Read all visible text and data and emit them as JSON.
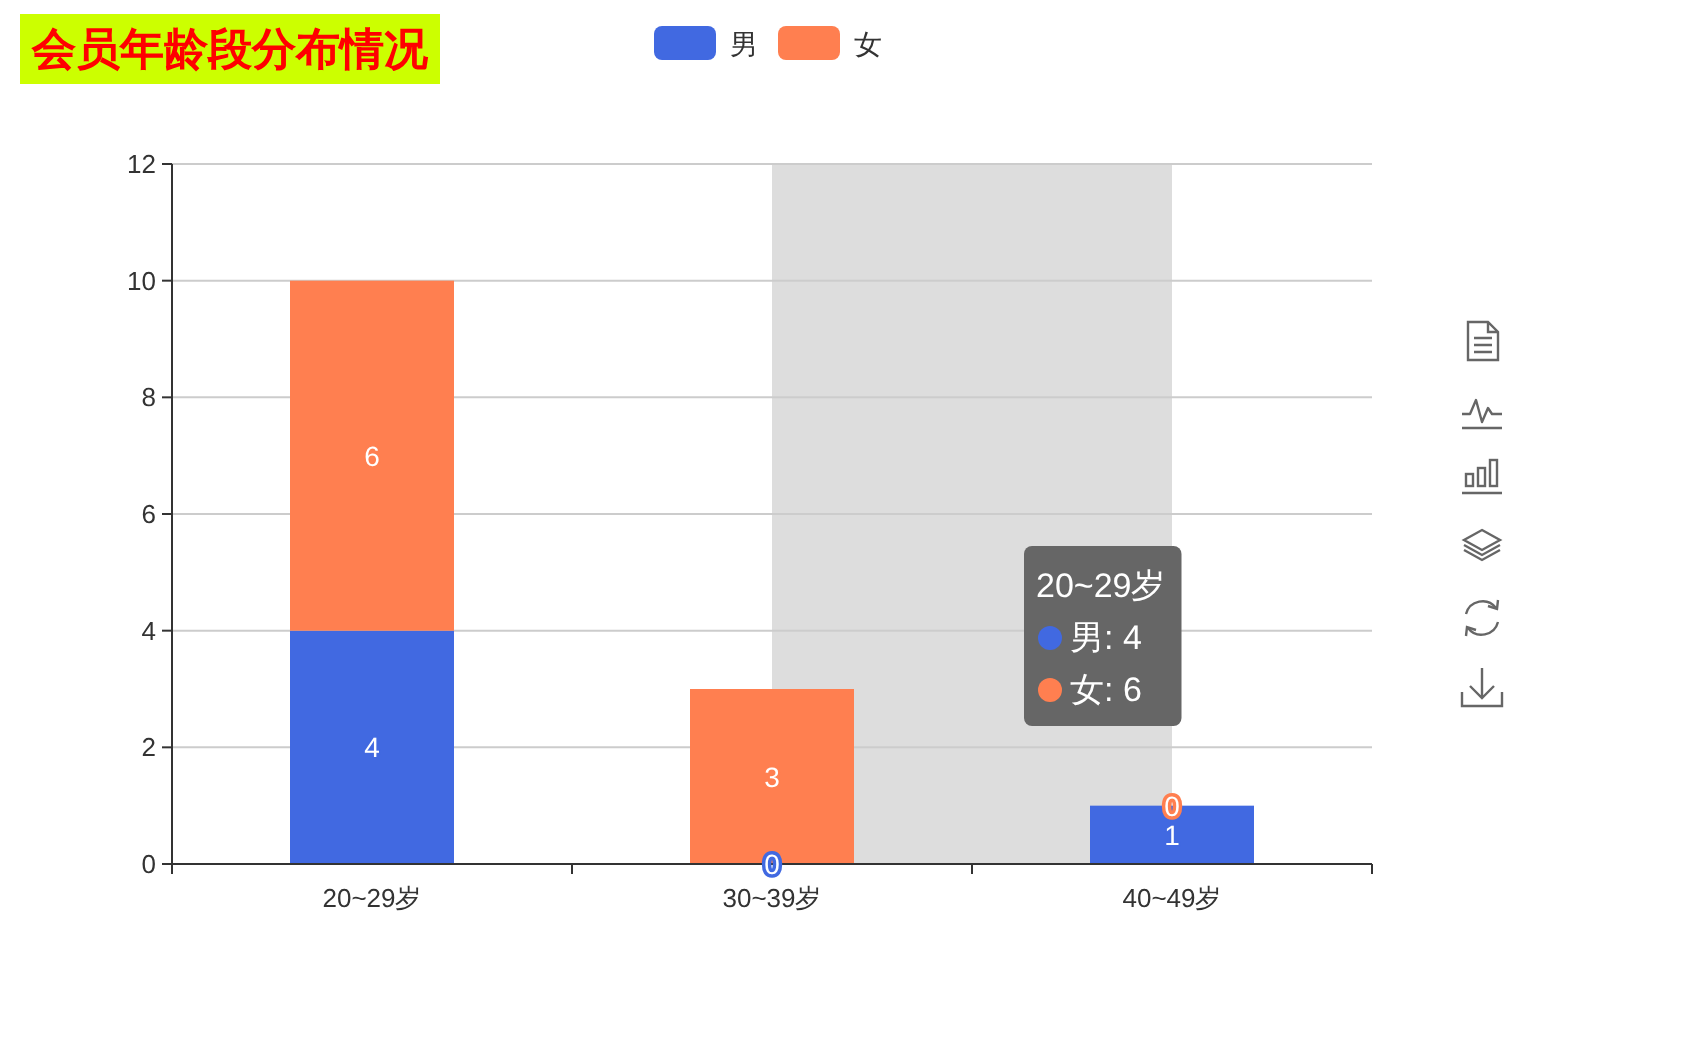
{
  "chart_data": {
    "type": "bar",
    "title": "会员年龄段分布情况",
    "categories": [
      "20~29岁",
      "30~39岁",
      "40~49岁"
    ],
    "series": [
      {
        "name": "男",
        "color": "#4169e1",
        "values": [
          4,
          0,
          1
        ],
        "value_labels": [
          "4",
          null,
          "1"
        ]
      },
      {
        "name": "女",
        "color": "#ff7f50",
        "values": [
          6,
          3,
          0
        ],
        "value_labels": [
          "6",
          "3",
          "0"
        ]
      }
    ],
    "stacked": true,
    "ylim": [
      0,
      12
    ],
    "yticks": [
      0,
      2,
      4,
      6,
      8,
      10,
      12
    ],
    "grid": "y",
    "legend": "top",
    "bands": [
      {
        "axis": "x",
        "from": "30~39岁",
        "to": "40~49岁",
        "color": "#dddddd"
      }
    ],
    "annotations": [
      "20~29岁",
      "男: 4",
      "女: 6",
      {
        "text": "0",
        "x": "30~39岁",
        "y": 0
      }
    ]
  }
}
